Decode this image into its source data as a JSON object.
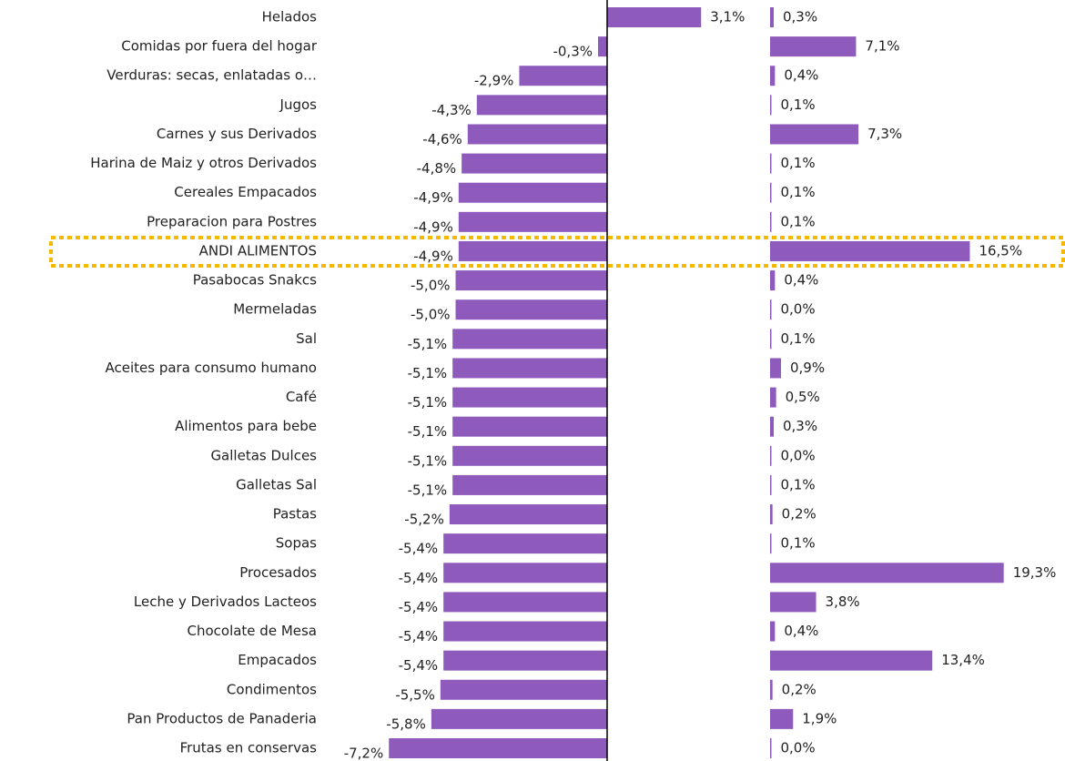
{
  "chart_data": {
    "type": "bar",
    "categories": [
      "Helados",
      "Comidas por fuera del hogar",
      "Verduras: secas, enlatadas o…",
      "Jugos",
      "Carnes y sus Derivados",
      "Harina de Maiz y otros Derivados",
      "Cereales Empacados",
      "Preparacion para Postres",
      "ANDI ALIMENTOS",
      "Pasabocas Snakcs",
      "Mermeladas",
      "Sal",
      "Aceites para consumo humano",
      "Café",
      "Alimentos para bebe",
      "Galletas Dulces",
      "Galletas Sal",
      "Pastas",
      "Sopas",
      "Procesados",
      "Leche y Derivados Lacteos",
      "Chocolate de Mesa",
      "Empacados",
      "Condimentos",
      "Pan Productos de Panaderia",
      "Frutas en conservas"
    ],
    "series": [
      {
        "color": "#8e5bbd",
        "values": [
          3.1,
          -0.3,
          -2.9,
          -4.3,
          -4.6,
          -4.8,
          -4.9,
          -4.9,
          -4.9,
          -5.0,
          -5.0,
          -5.1,
          -5.1,
          -5.1,
          -5.1,
          -5.1,
          -5.1,
          -5.2,
          -5.4,
          -5.4,
          -5.4,
          -5.4,
          -5.4,
          -5.5,
          -5.8,
          -7.2
        ],
        "value_labels": [
          "3,1%",
          "-0,3%",
          "-2,9%",
          "-4,3%",
          "-4,6%",
          "-4,8%",
          "-4,9%",
          "-4,9%",
          "-4,9%",
          "-5,0%",
          "-5,0%",
          "-5,1%",
          "-5,1%",
          "-5,1%",
          "-5,1%",
          "-5,1%",
          "-5,1%",
          "-5,2%",
          "-5,4%",
          "-5,4%",
          "-5,4%",
          "-5,4%",
          "-5,4%",
          "-5,5%",
          "-5,8%",
          "-7,2%"
        ]
      },
      {
        "color": "#8e5bbd",
        "values": [
          0.3,
          7.1,
          0.4,
          0.1,
          7.3,
          0.1,
          0.1,
          0.1,
          16.5,
          0.4,
          0.0,
          0.1,
          0.9,
          0.5,
          0.3,
          0.0,
          0.1,
          0.2,
          0.1,
          19.3,
          3.8,
          0.4,
          13.4,
          0.2,
          1.9,
          0.0
        ],
        "value_labels": [
          "0,3%",
          "7,1%",
          "0,4%",
          "0,1%",
          "7,3%",
          "0,1%",
          "0,1%",
          "0,1%",
          "16,5%",
          "0,4%",
          "0,0%",
          "0,1%",
          "0,9%",
          "0,5%",
          "0,3%",
          "0,0%",
          "0,1%",
          "0,2%",
          "0,1%",
          "19,3%",
          "3,8%",
          "0,4%",
          "13,4%",
          "0,2%",
          "1,9%",
          "0,0%"
        ]
      }
    ],
    "highlight": 8,
    "highlight_color": "#f5b800"
  }
}
